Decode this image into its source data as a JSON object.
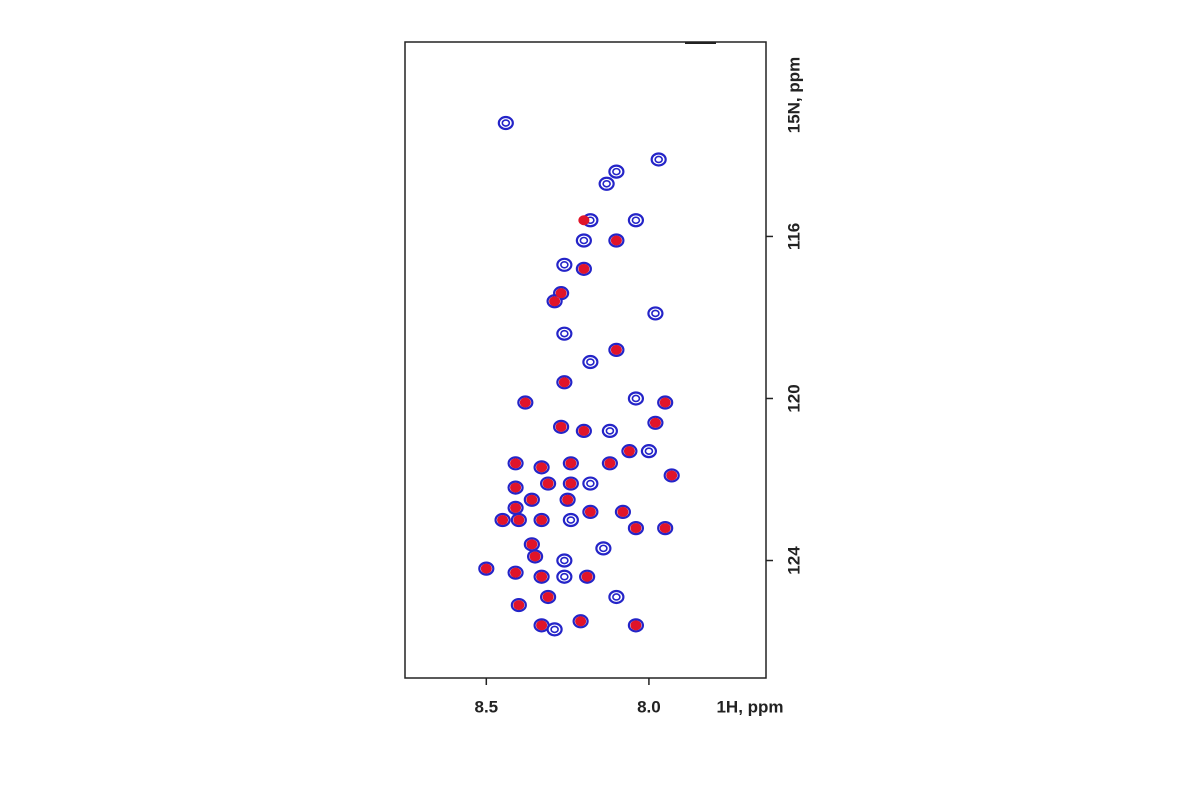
{
  "chart_data": {
    "type": "scatter",
    "x_label": "1H, ppm",
    "y_label": "15N, ppm",
    "xlim": [
      8.75,
      7.64
    ],
    "ylim": [
      111.2,
      126.9
    ],
    "xticks": [
      8.5,
      {
        "value": 8,
        "label": "8.0"
      }
    ],
    "yticks": [
      116,
      120,
      124
    ],
    "series": [
      {
        "color": "#2424c8",
        "x": [
          8.44,
          7.97,
          8.1,
          8.13,
          8.18,
          8.04,
          8.2,
          8.1,
          8.26,
          8.2,
          8.27,
          8.29,
          7.98,
          8.26,
          8.1,
          8.18,
          8.26,
          8.38,
          7.95,
          8.04,
          8.27,
          7.98,
          8.2,
          8.12,
          8.41,
          8.33,
          8.24,
          8.12,
          8.06,
          8.0,
          7.93,
          8.31,
          8.24,
          8.41,
          8.18,
          8.36,
          8.25,
          8.41,
          8.45,
          8.4,
          8.33,
          8.18,
          8.08,
          7.95,
          8.04,
          8.24,
          8.36,
          8.35,
          8.26,
          8.14,
          8.5,
          8.41,
          8.33,
          8.26,
          8.19,
          8.31,
          8.1,
          8.4,
          8.33,
          8.21,
          8.04,
          8.29
        ],
        "y": [
          113.2,
          114.1,
          114.4,
          114.7,
          115.6,
          115.6,
          116.1,
          116.1,
          116.7,
          116.8,
          117.4,
          117.6,
          117.9,
          118.4,
          118.8,
          119.1,
          119.6,
          120.1,
          120.1,
          120.0,
          120.7,
          120.6,
          120.8,
          120.8,
          121.6,
          121.7,
          121.6,
          121.6,
          121.3,
          121.3,
          121.9,
          122.1,
          122.1,
          122.2,
          122.1,
          122.5,
          122.5,
          122.7,
          123.0,
          123.0,
          123.0,
          122.8,
          122.8,
          123.2,
          123.2,
          123.0,
          123.6,
          123.9,
          124.0,
          123.7,
          124.2,
          124.3,
          124.4,
          124.4,
          124.4,
          124.9,
          124.9,
          125.1,
          125.6,
          125.5,
          125.6,
          125.7
        ]
      },
      {
        "color": "#e0142a",
        "x": [
          8.2,
          8.1,
          8.2,
          8.27,
          8.29,
          8.1,
          8.26,
          8.38,
          7.95,
          8.27,
          7.98,
          8.2,
          8.41,
          8.33,
          8.24,
          8.12,
          8.06,
          7.93,
          8.31,
          8.24,
          8.41,
          8.36,
          8.25,
          8.41,
          8.45,
          8.4,
          8.33,
          8.18,
          8.08,
          7.95,
          8.04,
          8.36,
          8.35,
          8.5,
          8.41,
          8.33,
          8.19,
          8.31,
          8.4,
          8.33,
          8.21,
          8.04
        ],
        "y": [
          115.6,
          116.1,
          116.8,
          117.4,
          117.6,
          118.8,
          119.6,
          120.1,
          120.1,
          120.7,
          120.6,
          120.8,
          121.6,
          121.7,
          121.6,
          121.6,
          121.3,
          121.9,
          122.1,
          122.1,
          122.2,
          122.5,
          122.5,
          122.7,
          123.0,
          123.0,
          123.0,
          122.8,
          122.8,
          123.2,
          123.2,
          123.6,
          123.9,
          124.2,
          124.3,
          124.4,
          124.4,
          124.9,
          125.1,
          125.6,
          125.5,
          125.6
        ]
      }
    ]
  }
}
